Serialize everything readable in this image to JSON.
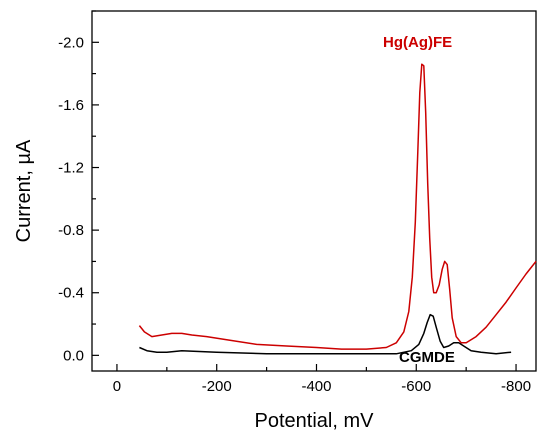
{
  "chart_data": {
    "type": "line",
    "xlabel": "Potential, mV",
    "ylabel": "Current, µA",
    "xlim": [
      50,
      -840
    ],
    "ylim": [
      0.1,
      -2.2
    ],
    "x_ticks": [
      0,
      -200,
      -400,
      -600,
      -800
    ],
    "x_tick_labels": [
      "0",
      "-200",
      "-400",
      "-600",
      "-800"
    ],
    "y_ticks": [
      0.0,
      -0.4,
      -0.8,
      -1.2,
      -1.6,
      -2.0
    ],
    "y_tick_labels": [
      "0.0",
      "-0.4",
      "-0.8",
      "-1.2",
      "-1.6",
      "-2.0"
    ],
    "grid": false,
    "series": [
      {
        "name": "Hg(Ag)FE",
        "color": "#cc0000",
        "points": [
          [
            -45,
            -0.19
          ],
          [
            -55,
            -0.15
          ],
          [
            -70,
            -0.12
          ],
          [
            -90,
            -0.13
          ],
          [
            -110,
            -0.14
          ],
          [
            -130,
            -0.14
          ],
          [
            -150,
            -0.13
          ],
          [
            -180,
            -0.12
          ],
          [
            -220,
            -0.1
          ],
          [
            -280,
            -0.07
          ],
          [
            -340,
            -0.06
          ],
          [
            -400,
            -0.05
          ],
          [
            -450,
            -0.04
          ],
          [
            -500,
            -0.04
          ],
          [
            -540,
            -0.05
          ],
          [
            -560,
            -0.08
          ],
          [
            -575,
            -0.15
          ],
          [
            -585,
            -0.28
          ],
          [
            -592,
            -0.5
          ],
          [
            -598,
            -0.85
          ],
          [
            -603,
            -1.3
          ],
          [
            -607,
            -1.68
          ],
          [
            -611,
            -1.86
          ],
          [
            -615,
            -1.85
          ],
          [
            -619,
            -1.55
          ],
          [
            -623,
            -1.1
          ],
          [
            -627,
            -0.75
          ],
          [
            -631,
            -0.5
          ],
          [
            -635,
            -0.4
          ],
          [
            -640,
            -0.4
          ],
          [
            -646,
            -0.45
          ],
          [
            -652,
            -0.55
          ],
          [
            -657,
            -0.6
          ],
          [
            -662,
            -0.58
          ],
          [
            -667,
            -0.42
          ],
          [
            -672,
            -0.24
          ],
          [
            -680,
            -0.12
          ],
          [
            -690,
            -0.08
          ],
          [
            -700,
            -0.08
          ],
          [
            -720,
            -0.12
          ],
          [
            -740,
            -0.18
          ],
          [
            -760,
            -0.26
          ],
          [
            -780,
            -0.34
          ],
          [
            -800,
            -0.43
          ],
          [
            -820,
            -0.52
          ],
          [
            -840,
            -0.6
          ]
        ]
      },
      {
        "name": "CGMDE",
        "color": "#000000",
        "points": [
          [
            -45,
            -0.05
          ],
          [
            -60,
            -0.03
          ],
          [
            -80,
            -0.02
          ],
          [
            -100,
            -0.02
          ],
          [
            -130,
            -0.03
          ],
          [
            -200,
            -0.02
          ],
          [
            -300,
            -0.01
          ],
          [
            -400,
            -0.01
          ],
          [
            -500,
            -0.01
          ],
          [
            -560,
            -0.01
          ],
          [
            -590,
            -0.03
          ],
          [
            -605,
            -0.07
          ],
          [
            -615,
            -0.14
          ],
          [
            -622,
            -0.21
          ],
          [
            -628,
            -0.26
          ],
          [
            -634,
            -0.25
          ],
          [
            -640,
            -0.18
          ],
          [
            -648,
            -0.09
          ],
          [
            -655,
            -0.05
          ],
          [
            -665,
            -0.06
          ],
          [
            -675,
            -0.08
          ],
          [
            -685,
            -0.08
          ],
          [
            -695,
            -0.06
          ],
          [
            -710,
            -0.03
          ],
          [
            -730,
            -0.02
          ],
          [
            -760,
            -0.01
          ],
          [
            -790,
            -0.02
          ]
        ]
      }
    ]
  }
}
